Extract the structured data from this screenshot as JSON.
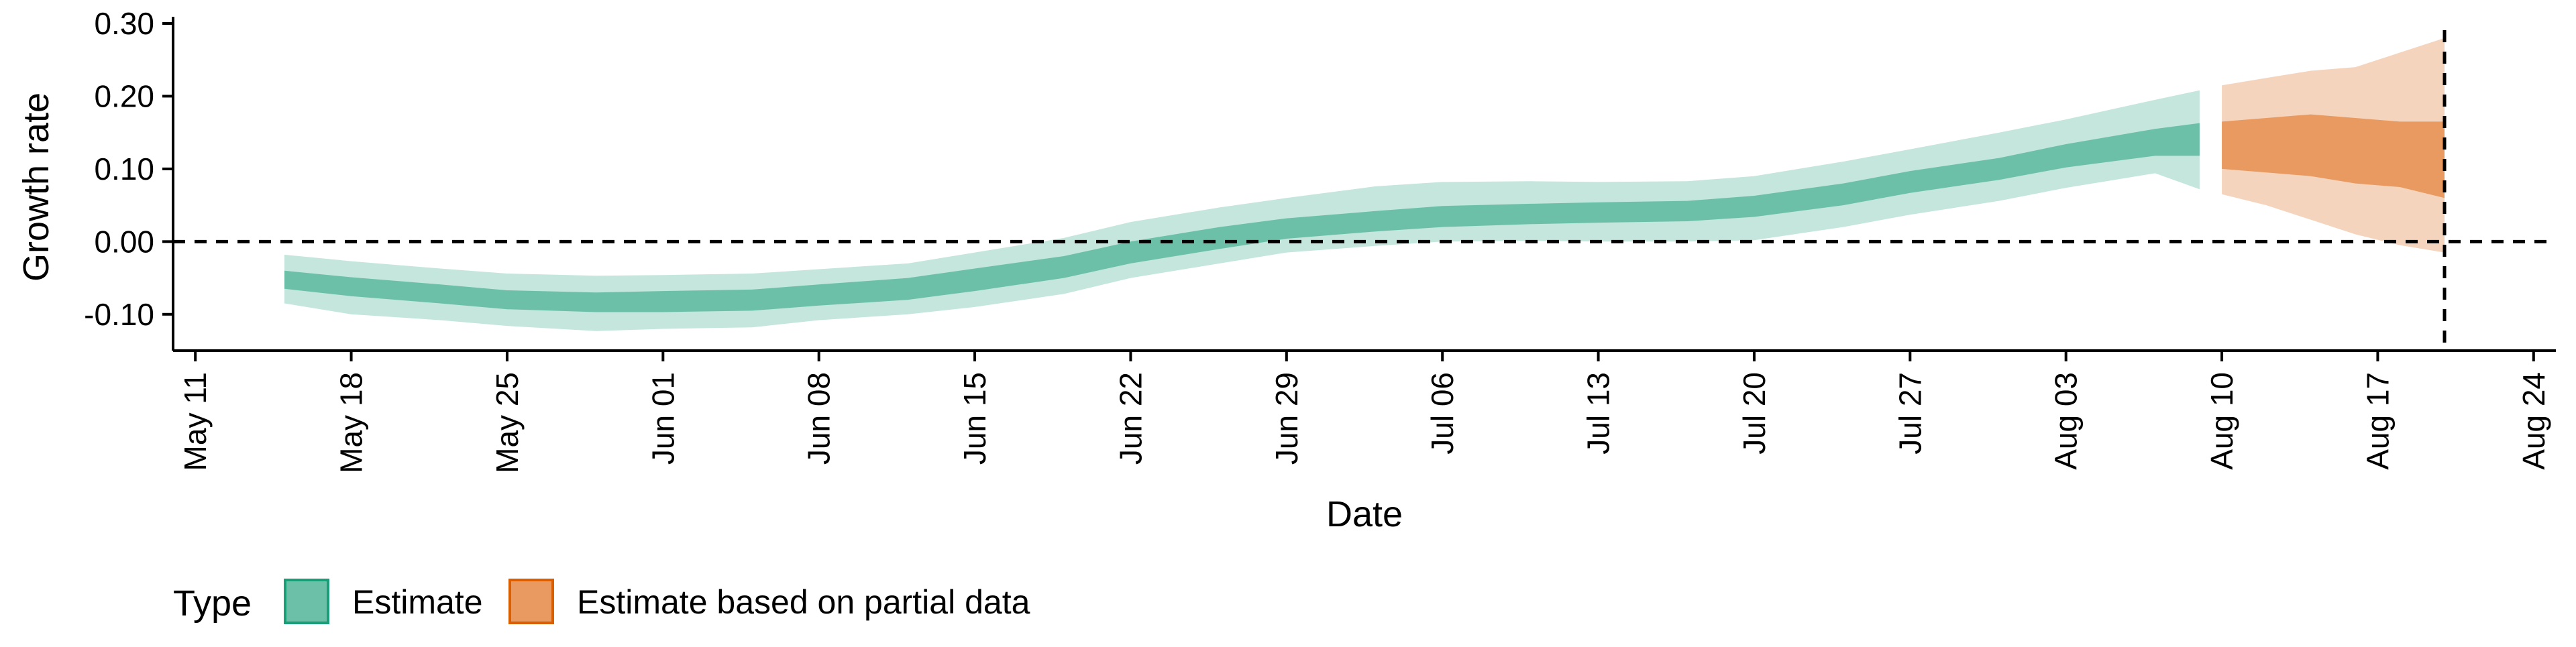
{
  "chart_data": {
    "type": "area",
    "title": "",
    "xlabel": "Date",
    "ylabel": "Growth rate",
    "ylim": [
      -0.15,
      0.3
    ],
    "xlim": [
      "2020-05-10",
      "2020-08-25"
    ],
    "x_ticks": [
      "May 11",
      "May 18",
      "May 25",
      "Jun 01",
      "Jun 08",
      "Jun 15",
      "Jun 22",
      "Jun 29",
      "Jul 06",
      "Jul 13",
      "Jul 20",
      "Jul 27",
      "Aug 03",
      "Aug 10",
      "Aug 17",
      "Aug 24"
    ],
    "x_tick_days": [
      1,
      8,
      15,
      22,
      29,
      36,
      43,
      50,
      57,
      64,
      71,
      78,
      85,
      92,
      99,
      106
    ],
    "y_ticks": [
      -0.1,
      0.0,
      0.1,
      0.2,
      0.3
    ],
    "y_tick_labels": [
      "-0.10",
      "0.00",
      "0.10",
      "0.20",
      "0.30"
    ],
    "reference_lines": {
      "horizontal_y": 0.0,
      "vertical_day": 102
    },
    "x_day_origin": "May 10",
    "series": [
      {
        "name": "Estimate",
        "color_inner": "#6cc0a8",
        "color_outer": "#c4e6dc",
        "days": [
          5,
          8,
          12,
          15,
          19,
          22,
          26,
          29,
          33,
          36,
          40,
          43,
          47,
          50,
          54,
          57,
          61,
          64,
          68,
          71,
          75,
          78,
          82,
          85,
          89,
          91
        ],
        "median": [
          -0.052,
          -0.062,
          -0.072,
          -0.08,
          -0.083,
          -0.082,
          -0.08,
          -0.073,
          -0.065,
          -0.052,
          -0.035,
          -0.015,
          0.005,
          0.018,
          0.028,
          0.035,
          0.038,
          0.04,
          0.042,
          0.048,
          0.065,
          0.082,
          0.1,
          0.118,
          0.135,
          0.14
        ],
        "inner_low": [
          -0.065,
          -0.075,
          -0.085,
          -0.093,
          -0.097,
          -0.097,
          -0.095,
          -0.088,
          -0.08,
          -0.068,
          -0.05,
          -0.03,
          -0.01,
          0.004,
          0.014,
          0.02,
          0.024,
          0.026,
          0.028,
          0.034,
          0.05,
          0.067,
          0.085,
          0.102,
          0.118,
          0.118
        ],
        "inner_high": [
          -0.04,
          -0.049,
          -0.059,
          -0.067,
          -0.07,
          -0.068,
          -0.066,
          -0.059,
          -0.05,
          -0.037,
          -0.02,
          0.0,
          0.02,
          0.032,
          0.042,
          0.049,
          0.052,
          0.054,
          0.056,
          0.063,
          0.08,
          0.097,
          0.115,
          0.134,
          0.155,
          0.163
        ],
        "outer_low": [
          -0.085,
          -0.1,
          -0.108,
          -0.116,
          -0.123,
          -0.12,
          -0.118,
          -0.108,
          -0.1,
          -0.09,
          -0.072,
          -0.05,
          -0.03,
          -0.015,
          -0.006,
          0.0,
          0.001,
          0.0,
          0.0,
          0.002,
          0.02,
          0.037,
          0.056,
          0.074,
          0.094,
          0.072
        ],
        "outer_high": [
          -0.018,
          -0.027,
          -0.037,
          -0.044,
          -0.047,
          -0.046,
          -0.044,
          -0.038,
          -0.03,
          -0.015,
          0.005,
          0.027,
          0.047,
          0.06,
          0.076,
          0.082,
          0.083,
          0.082,
          0.083,
          0.09,
          0.11,
          0.127,
          0.15,
          0.168,
          0.195,
          0.208
        ]
      },
      {
        "name": "Estimate based on partial data",
        "color_inner": "#e89a60",
        "color_outer": "#f5d4bd",
        "days": [
          92,
          94,
          96,
          98,
          100,
          102
        ],
        "median": [
          0.14,
          0.13,
          0.128,
          0.125,
          0.12,
          0.115
        ],
        "inner_low": [
          0.1,
          0.095,
          0.09,
          0.08,
          0.075,
          0.06
        ],
        "inner_high": [
          0.165,
          0.17,
          0.175,
          0.17,
          0.165,
          0.165
        ],
        "outer_low": [
          0.065,
          0.05,
          0.03,
          0.01,
          -0.005,
          -0.015
        ],
        "outer_high": [
          0.215,
          0.225,
          0.235,
          0.24,
          0.26,
          0.28
        ]
      }
    ],
    "legend": {
      "title": "Type",
      "position": "bottom-left",
      "entries": [
        {
          "label": "Estimate",
          "fill": "#6cc0a8",
          "border": "#1b9e77"
        },
        {
          "label": "Estimate based on partial data",
          "fill": "#e89a60",
          "border": "#d95f02"
        }
      ]
    }
  }
}
